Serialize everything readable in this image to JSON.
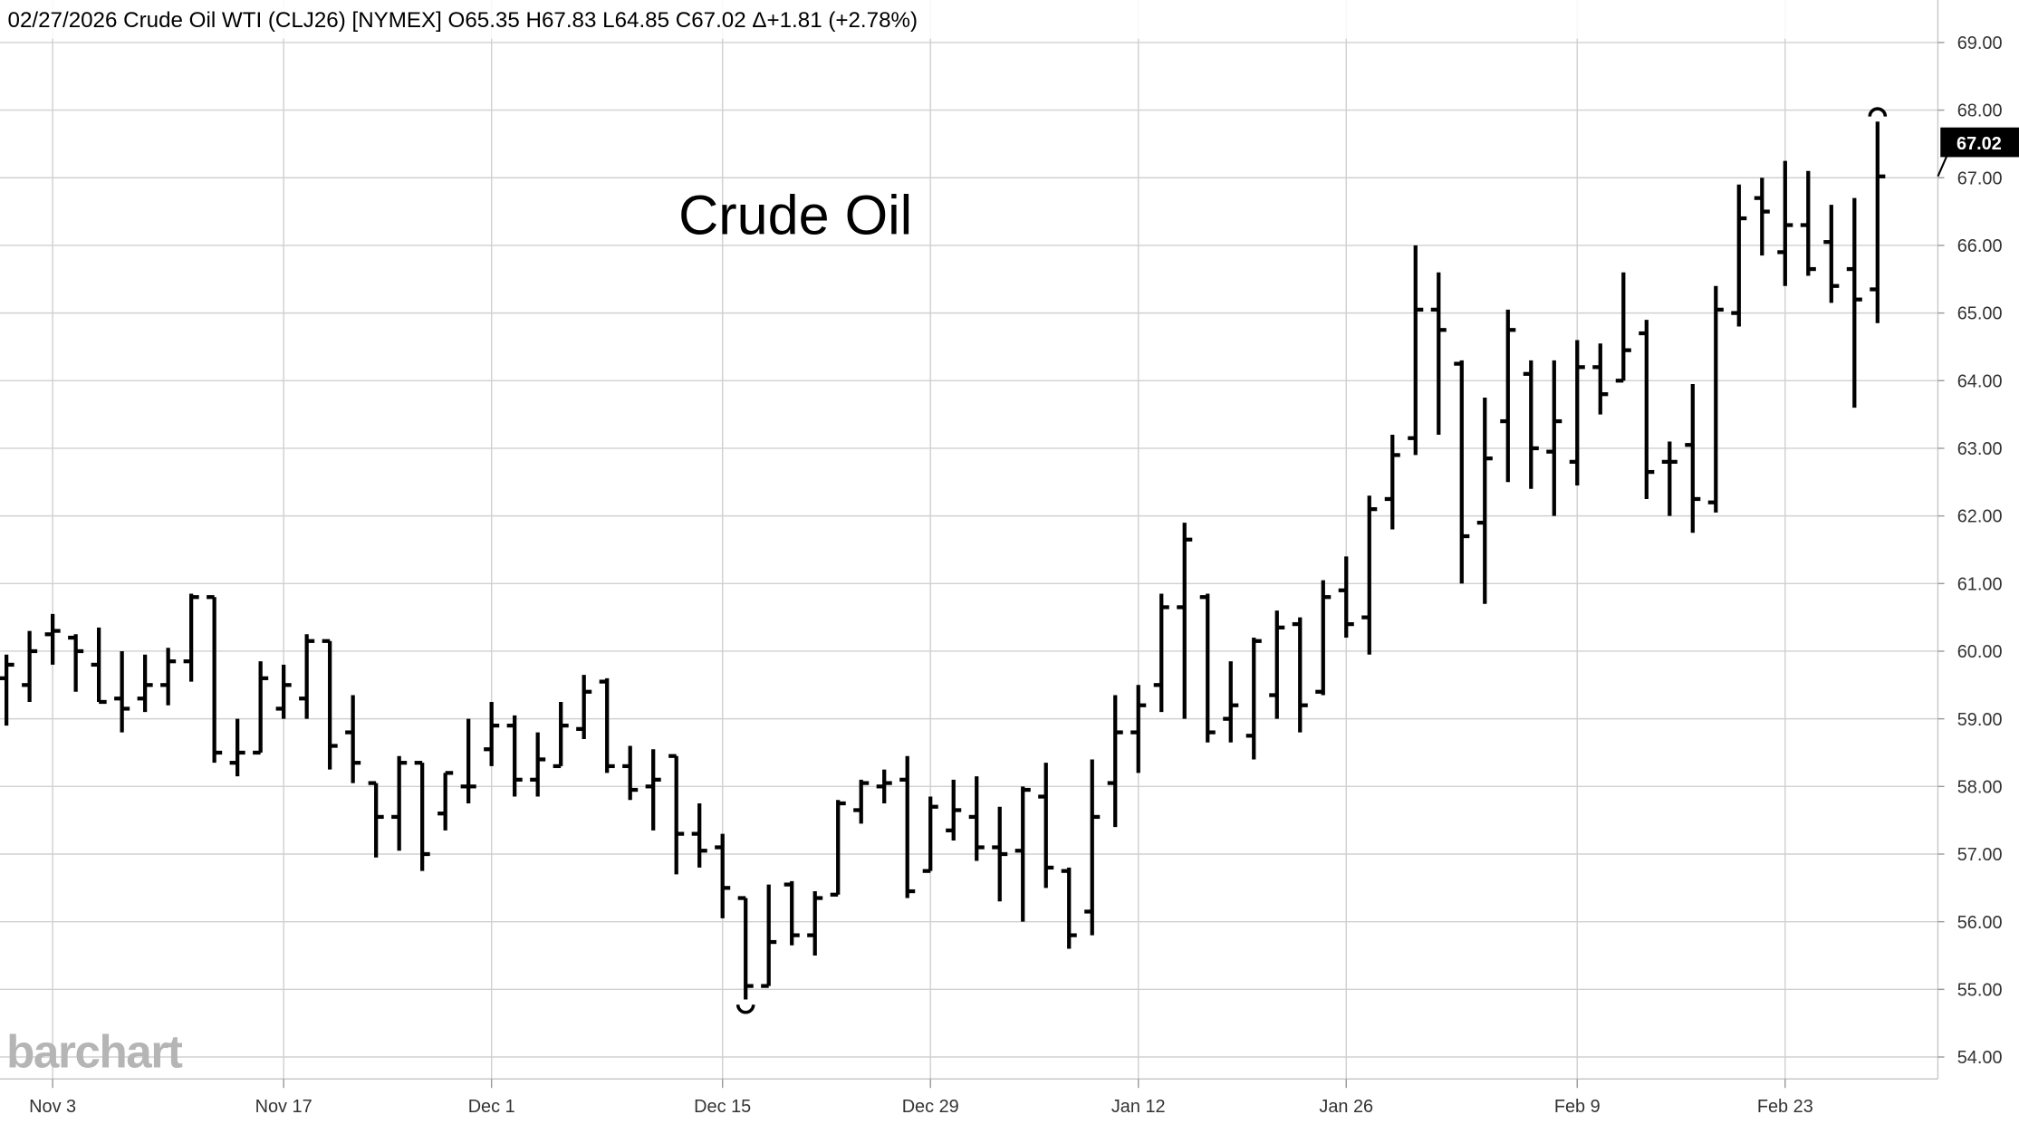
{
  "header": {
    "date": "02/27/2026",
    "instrument": "Crude Oil WTI (CLJ26) [NYMEX]",
    "open": "O65.35",
    "high": "H67.83",
    "low": "L64.85",
    "close": "C67.02",
    "change": "Δ+1.81 (+2.78%)"
  },
  "logo": "barchart",
  "last_price_label": "67.02",
  "chart_data": {
    "type": "ohlc",
    "title": "Crude Oil",
    "ylim": [
      53.75,
      69.25
    ],
    "y_ticks": [
      "54.00",
      "55.00",
      "56.00",
      "57.00",
      "58.00",
      "59.00",
      "60.00",
      "61.00",
      "62.00",
      "63.00",
      "64.00",
      "65.00",
      "66.00",
      "67.00",
      "68.00",
      "69.00"
    ],
    "x_ticks": [
      {
        "date": "11/03",
        "label": "Nov 3"
      },
      {
        "date": "11/17",
        "label": "Nov 17"
      },
      {
        "date": "12/01",
        "label": "Dec 1"
      },
      {
        "date": "12/15",
        "label": "Dec 15"
      },
      {
        "date": "12/29",
        "label": "Dec 29"
      },
      {
        "date": "01/12",
        "label": "Jan 12"
      },
      {
        "date": "01/26",
        "label": "Jan 26"
      },
      {
        "date": "02/09",
        "label": "Feb 9"
      },
      {
        "date": "02/23",
        "label": "Feb 23"
      }
    ],
    "grid": true,
    "colors": {
      "bars": "#000000",
      "grid": "#d0d0d0",
      "logo": "#b0b0b0"
    },
    "bars": [
      [
        "10/30",
        59.6,
        59.95,
        58.9,
        59.8
      ],
      [
        "10/31",
        59.5,
        60.3,
        59.25,
        60.0
      ],
      [
        "11/03",
        60.25,
        60.55,
        59.8,
        60.3
      ],
      [
        "11/04",
        60.2,
        60.25,
        59.4,
        60.0
      ],
      [
        "11/05",
        59.8,
        60.35,
        59.25,
        59.25
      ],
      [
        "11/06",
        59.3,
        60.0,
        58.8,
        59.15
      ],
      [
        "11/07",
        59.3,
        59.95,
        59.1,
        59.5
      ],
      [
        "11/10",
        59.5,
        60.05,
        59.2,
        59.85
      ],
      [
        "11/11",
        59.85,
        60.85,
        59.55,
        60.8
      ],
      [
        "11/12",
        60.8,
        60.8,
        58.35,
        58.5
      ],
      [
        "11/13",
        58.35,
        59.0,
        58.15,
        58.5
      ],
      [
        "11/14",
        58.5,
        59.85,
        58.5,
        59.6
      ],
      [
        "11/17",
        59.15,
        59.8,
        59.0,
        59.5
      ],
      [
        "11/18",
        59.3,
        60.25,
        59.0,
        60.15
      ],
      [
        "11/19",
        60.15,
        60.15,
        58.25,
        58.6
      ],
      [
        "11/20",
        58.8,
        59.35,
        58.05,
        58.35
      ],
      [
        "11/21",
        58.05,
        58.05,
        56.95,
        57.55
      ],
      [
        "11/24",
        57.55,
        58.45,
        57.05,
        58.35
      ],
      [
        "11/25",
        58.35,
        58.35,
        56.75,
        57.0
      ],
      [
        "11/26",
        57.6,
        58.2,
        57.35,
        58.2
      ],
      [
        "11/28",
        58.0,
        59.0,
        57.75,
        58.0
      ],
      [
        "12/01",
        58.55,
        59.25,
        58.3,
        58.9
      ],
      [
        "12/02",
        58.9,
        59.05,
        57.85,
        58.1
      ],
      [
        "12/03",
        58.1,
        58.8,
        57.85,
        58.4
      ],
      [
        "12/04",
        58.3,
        59.25,
        58.3,
        58.9
      ],
      [
        "12/05",
        58.85,
        59.65,
        58.7,
        59.4
      ],
      [
        "12/08",
        59.55,
        59.6,
        58.2,
        58.3
      ],
      [
        "12/09",
        58.3,
        58.6,
        57.8,
        57.95
      ],
      [
        "12/10",
        58.0,
        58.55,
        57.35,
        58.1
      ],
      [
        "12/11",
        58.45,
        58.45,
        56.7,
        57.3
      ],
      [
        "12/12",
        57.3,
        57.75,
        56.8,
        57.05
      ],
      [
        "12/15",
        57.1,
        57.3,
        56.05,
        56.5
      ],
      [
        "12/16",
        56.35,
        56.35,
        54.85,
        55.05
      ],
      [
        "12/17",
        55.05,
        56.55,
        55.05,
        55.7
      ],
      [
        "12/18",
        56.55,
        56.6,
        55.65,
        55.8
      ],
      [
        "12/19",
        55.8,
        56.45,
        55.5,
        56.35
      ],
      [
        "12/22",
        56.4,
        57.8,
        56.4,
        57.75
      ],
      [
        "12/23",
        57.65,
        58.1,
        57.45,
        58.05
      ],
      [
        "12/24",
        58.0,
        58.25,
        57.75,
        58.05
      ],
      [
        "12/26",
        58.1,
        58.45,
        56.35,
        56.45
      ],
      [
        "12/29",
        56.75,
        57.85,
        56.75,
        57.7
      ],
      [
        "12/30",
        57.35,
        58.1,
        57.2,
        57.65
      ],
      [
        "12/31",
        57.55,
        58.15,
        56.9,
        57.1
      ],
      [
        "01/02",
        57.1,
        57.7,
        56.3,
        57.0
      ],
      [
        "01/05",
        57.05,
        58.0,
        56.0,
        57.95
      ],
      [
        "01/06",
        57.85,
        58.35,
        56.5,
        56.8
      ],
      [
        "01/07",
        56.75,
        56.8,
        55.6,
        55.8
      ],
      [
        "01/08",
        56.15,
        58.4,
        55.8,
        57.55
      ],
      [
        "01/09",
        58.05,
        59.35,
        57.4,
        58.8
      ],
      [
        "01/12",
        58.8,
        59.5,
        58.2,
        59.2
      ],
      [
        "01/13",
        59.5,
        60.85,
        59.1,
        60.65
      ],
      [
        "01/14",
        60.65,
        61.9,
        59.0,
        61.65
      ],
      [
        "01/15",
        60.8,
        60.85,
        58.65,
        58.8
      ],
      [
        "01/16",
        59.0,
        59.85,
        58.65,
        59.2
      ],
      [
        "01/20",
        58.75,
        60.2,
        58.4,
        60.15
      ],
      [
        "01/21",
        59.35,
        60.6,
        59.0,
        60.35
      ],
      [
        "01/22",
        60.4,
        60.5,
        58.8,
        59.2
      ],
      [
        "01/23",
        59.4,
        61.05,
        59.35,
        60.8
      ],
      [
        "01/26",
        60.9,
        61.4,
        60.2,
        60.4
      ],
      [
        "01/27",
        60.5,
        62.3,
        59.95,
        62.1
      ],
      [
        "01/28",
        62.25,
        63.2,
        61.8,
        62.9
      ],
      [
        "01/29",
        63.15,
        66.0,
        62.9,
        65.05
      ],
      [
        "01/30",
        65.05,
        65.6,
        63.2,
        64.75
      ],
      [
        "02/02",
        64.25,
        64.3,
        61.0,
        61.7
      ],
      [
        "02/03",
        61.9,
        63.75,
        60.7,
        62.85
      ],
      [
        "02/04",
        63.4,
        65.05,
        62.5,
        64.75
      ],
      [
        "02/05",
        64.1,
        64.3,
        62.4,
        63.0
      ],
      [
        "02/06",
        62.95,
        64.3,
        62.0,
        63.4
      ],
      [
        "02/09",
        62.8,
        64.6,
        62.45,
        64.2
      ],
      [
        "02/10",
        64.2,
        64.55,
        63.5,
        63.8
      ],
      [
        "02/11",
        64.0,
        65.6,
        64.0,
        64.45
      ],
      [
        "02/12",
        64.7,
        64.9,
        62.25,
        62.65
      ],
      [
        "02/13",
        62.8,
        63.1,
        62.0,
        62.8
      ],
      [
        "02/17",
        63.05,
        63.95,
        61.75,
        62.25
      ],
      [
        "02/18",
        62.2,
        65.4,
        62.05,
        65.05
      ],
      [
        "02/19",
        65.0,
        66.9,
        64.8,
        66.4
      ],
      [
        "02/20",
        66.7,
        67.0,
        65.85,
        66.5
      ],
      [
        "02/23",
        65.9,
        67.25,
        65.4,
        66.3
      ],
      [
        "02/24",
        66.3,
        67.1,
        65.55,
        65.65
      ],
      [
        "02/25",
        66.05,
        66.6,
        65.15,
        65.4
      ],
      [
        "02/26",
        65.65,
        66.7,
        63.6,
        65.2
      ],
      [
        "02/27",
        65.35,
        67.83,
        64.85,
        67.02
      ]
    ]
  }
}
